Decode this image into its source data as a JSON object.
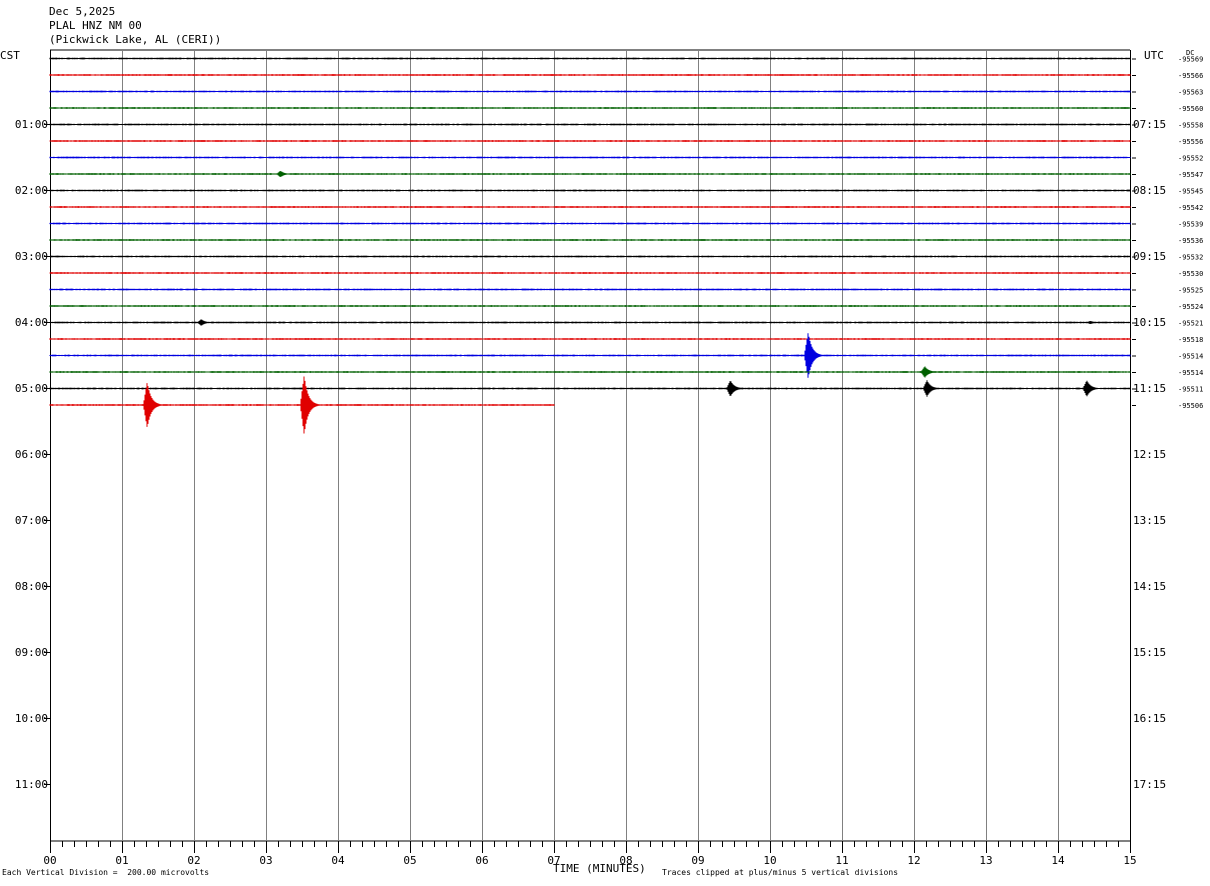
{
  "header": {
    "date": "Dec 5,2025",
    "station": "PLAL HNZ NM 00",
    "location": "(Pickwick Lake, AL (CERI))"
  },
  "left_tz": "CST",
  "right_tz": "UTC",
  "dc_label": "DC",
  "footer": {
    "division_note": "Each Vertical Division =  200.00 microvolts",
    "xlabel": "TIME (MINUTES)",
    "clip_note": "Traces clipped at plus/minus 5 vertical divisions"
  },
  "colors": [
    "#000000",
    "#e00000",
    "#0000e0",
    "#006000"
  ],
  "chart_data": {
    "type": "line",
    "title": "PLAL HNZ NM 00",
    "xlabel": "TIME (MINUTES)",
    "xlim": [
      0,
      15
    ],
    "x_ticks": [
      "00",
      "01",
      "02",
      "03",
      "04",
      "05",
      "06",
      "07",
      "08",
      "09",
      "10",
      "11",
      "12",
      "13",
      "14",
      "15"
    ],
    "left_hour_labels": [
      "01:00",
      "02:00",
      "03:00",
      "04:00",
      "05:00",
      "06:00",
      "07:00",
      "08:00",
      "09:00",
      "10:00",
      "11:00"
    ],
    "right_hour_labels": [
      "07:15",
      "08:15",
      "09:15",
      "10:15",
      "11:15",
      "12:15",
      "13:15",
      "14:15",
      "15:15",
      "16:15",
      "17:15"
    ],
    "trace_interval_minutes": 15,
    "traces": [
      {
        "dc": "-95569",
        "end_minute": 15,
        "events": []
      },
      {
        "dc": "-95566",
        "end_minute": 15,
        "events": []
      },
      {
        "dc": "-95563",
        "end_minute": 15,
        "events": []
      },
      {
        "dc": "-95560",
        "end_minute": 15,
        "events": []
      },
      {
        "dc": "-95558",
        "end_minute": 15,
        "events": []
      },
      {
        "dc": "-95556",
        "end_minute": 15,
        "events": []
      },
      {
        "dc": "-95552",
        "end_minute": 15,
        "events": []
      },
      {
        "dc": "-95547",
        "end_minute": 15,
        "events": [
          {
            "t": 3.2,
            "amp": 0.2
          }
        ]
      },
      {
        "dc": "-95545",
        "end_minute": 15,
        "events": []
      },
      {
        "dc": "-95542",
        "end_minute": 15,
        "events": []
      },
      {
        "dc": "-95539",
        "end_minute": 15,
        "events": []
      },
      {
        "dc": "-95536",
        "end_minute": 15,
        "events": []
      },
      {
        "dc": "-95532",
        "end_minute": 15,
        "events": []
      },
      {
        "dc": "-95530",
        "end_minute": 15,
        "events": []
      },
      {
        "dc": "-95525",
        "end_minute": 15,
        "events": []
      },
      {
        "dc": "-95524",
        "end_minute": 15,
        "events": []
      },
      {
        "dc": "-95521",
        "end_minute": 15,
        "events": [
          {
            "t": 2.1,
            "amp": 0.2
          },
          {
            "t": 14.45,
            "amp": 0.1
          }
        ]
      },
      {
        "dc": "-95518",
        "end_minute": 15,
        "events": []
      },
      {
        "dc": "-95514",
        "end_minute": 15,
        "events": [
          {
            "t": 10.53,
            "amp": 1.4
          }
        ]
      },
      {
        "dc": "-95514",
        "end_minute": 15,
        "events": [
          {
            "t": 12.15,
            "amp": 0.35
          }
        ]
      },
      {
        "dc": "-95511",
        "end_minute": 15,
        "events": [
          {
            "t": 9.45,
            "amp": 0.5
          },
          {
            "t": 12.18,
            "amp": 0.5
          },
          {
            "t": 14.4,
            "amp": 0.5
          }
        ]
      },
      {
        "dc": "-95506",
        "end_minute": 7,
        "events": [
          {
            "t": 1.35,
            "amp": 1.4
          },
          {
            "t": 3.53,
            "amp": 1.8
          }
        ]
      }
    ]
  }
}
